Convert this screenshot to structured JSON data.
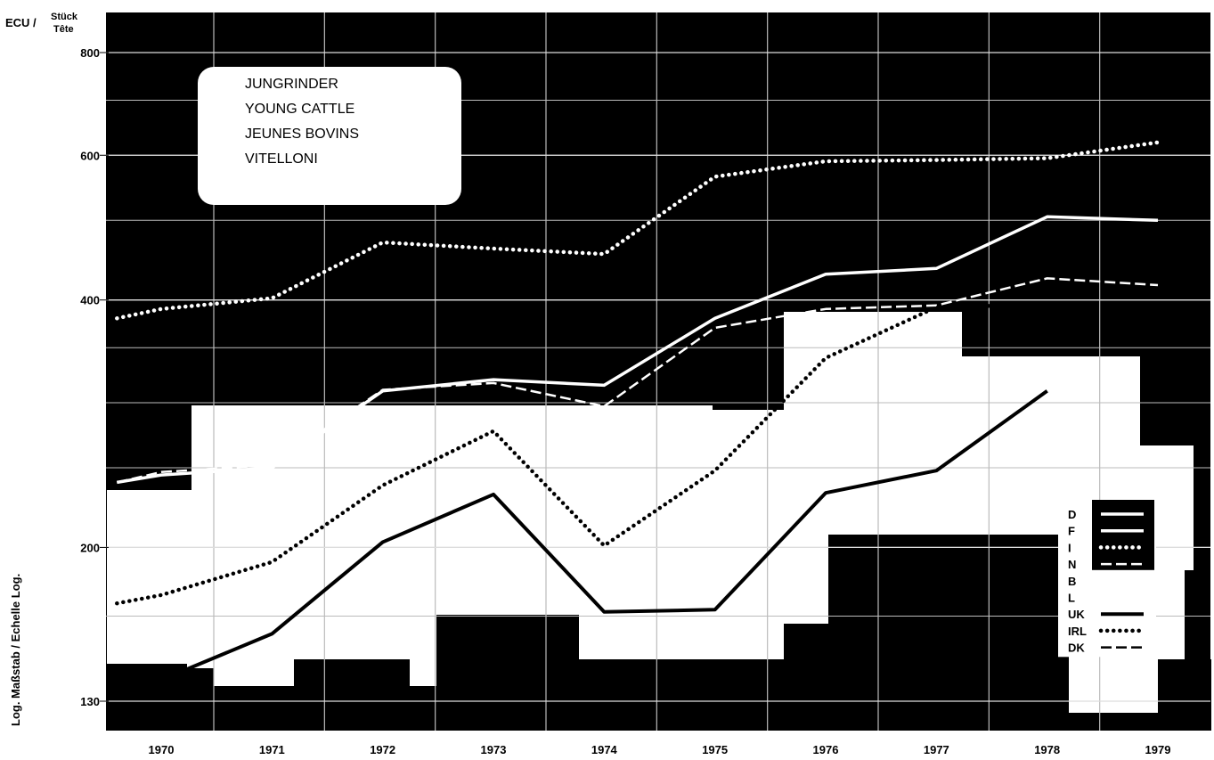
{
  "chart_data": {
    "type": "line",
    "title_lines": [
      "JUNGRINDER",
      "YOUNG CATTLE",
      "JEUNES BOVINS",
      "VITELLONI"
    ],
    "y_unit_prefix": "ECU /",
    "y_unit_top": "Stück",
    "y_unit_bottom": "Tête",
    "ylabel": "Log. Maßstab / Echelle Log.",
    "y_scale": "log",
    "ylim": [
      125,
      850
    ],
    "y_ticks": [
      130,
      200,
      400,
      600,
      800
    ],
    "x": [
      "1970",
      "1971",
      "1972",
      "1973",
      "1974",
      "1975",
      "1976",
      "1977",
      "1978",
      "1979"
    ],
    "grid": true,
    "legend_placement": "bottom-right",
    "legend": [
      {
        "label": "D",
        "style": "solid-white"
      },
      {
        "label": "F",
        "style": "solid-white"
      },
      {
        "label": "I",
        "style": "dotted-white"
      },
      {
        "label": "N",
        "style": "dashed-white"
      },
      {
        "label": "B",
        "style": "none"
      },
      {
        "label": "L",
        "style": "none"
      },
      {
        "label": "UK",
        "style": "solid-black"
      },
      {
        "label": "IRL",
        "style": "dotted-black"
      },
      {
        "label": "DK",
        "style": "dashed-black"
      }
    ],
    "series": [
      {
        "style": "dotted-white",
        "x": [
          "1969.6",
          "1970",
          "1971",
          "1972",
          "1973",
          "1974",
          "1975",
          "1976",
          "1977",
          "1978",
          "1979"
        ],
        "values": [
          380,
          390,
          402,
          470,
          462,
          455,
          565,
          590,
          592,
          595,
          622
        ]
      },
      {
        "style": "solid-white",
        "x": [
          "1969.6",
          "1970",
          "1971",
          "1972",
          "1973",
          "1974",
          "1975",
          "1976",
          "1977",
          "1978",
          "1979"
        ],
        "values": [
          240,
          245,
          250,
          310,
          320,
          315,
          380,
          430,
          437,
          505,
          500
        ]
      },
      {
        "style": "dashed-white",
        "x": [
          "1969.6",
          "1970",
          "1971",
          "1972",
          "1973",
          "1974",
          "1975",
          "1976",
          "1977",
          "1978",
          "1979"
        ],
        "values": [
          240,
          247,
          252,
          311,
          317,
          297,
          370,
          390,
          394,
          425,
          417
        ]
      },
      {
        "style": "dotted-black",
        "x": [
          "1969.6",
          "1970",
          "1971",
          "1972",
          "1973",
          "1974",
          "1975",
          "1976",
          "1977",
          "1978"
        ],
        "values": [
          171,
          175,
          192,
          238,
          277,
          201,
          248,
          340,
          392,
          395
        ]
      },
      {
        "style": "solid-black",
        "x": [
          "1969.6",
          "1970",
          "1971",
          "1972",
          "1973",
          "1974",
          "1975",
          "1976",
          "1977",
          "1978"
        ],
        "values": [
          135,
          138,
          157,
          203,
          232,
          167,
          168,
          233,
          248,
          310
        ]
      }
    ]
  }
}
